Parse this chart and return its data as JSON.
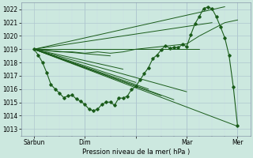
{
  "xlabel": "Pression niveau de la mer( hPa )",
  "bg_color": "#cce8df",
  "grid_major_color": "#b0c8d0",
  "grid_minor_color": "#c8dde4",
  "line_color": "#1a5c1a",
  "ylim": [
    1012.5,
    1022.5
  ],
  "yticks": [
    1013,
    1014,
    1015,
    1016,
    1017,
    1018,
    1019,
    1020,
    1021,
    1022
  ],
  "xlim": [
    0,
    108
  ],
  "xtick_pos": [
    6,
    30,
    54,
    78,
    102
  ],
  "xtick_labels": [
    "Sàrbun",
    "Dim",
    "",
    "Mar",
    "Mer"
  ],
  "vline_pos": [
    30,
    54,
    78,
    102
  ],
  "origin_x": 6,
  "origin_y": 1019.0,
  "fan_endpoints": [
    [
      30,
      1019.0
    ],
    [
      42,
      1018.5
    ],
    [
      48,
      1017.5
    ],
    [
      54,
      1016.5
    ],
    [
      60,
      1016.0
    ],
    [
      66,
      1015.5
    ],
    [
      72,
      1015.2
    ],
    [
      78,
      1015.8
    ],
    [
      84,
      1019.0
    ],
    [
      90,
      1021.0
    ],
    [
      96,
      1022.2
    ],
    [
      102,
      1013.2
    ]
  ],
  "main_curve_x": [
    6,
    8,
    10,
    12,
    14,
    16,
    18,
    20,
    22,
    24,
    26,
    28,
    30,
    32,
    34,
    36,
    38,
    40,
    42,
    44,
    46,
    48,
    50,
    52,
    54,
    56,
    58,
    60,
    62,
    64,
    66,
    68,
    70,
    72,
    74,
    76,
    78,
    80,
    82,
    84,
    86,
    88,
    90,
    92,
    94,
    96,
    98,
    100,
    102
  ],
  "main_curve_y": [
    1019.0,
    1018.6,
    1018.0,
    1017.2,
    1016.4,
    1016.0,
    1015.7,
    1015.5,
    1015.4,
    1015.5,
    1015.3,
    1015.1,
    1014.8,
    1014.5,
    1014.4,
    1014.6,
    1014.8,
    1015.0,
    1015.0,
    1014.9,
    1015.2,
    1015.3,
    1015.5,
    1015.8,
    1016.2,
    1016.8,
    1017.2,
    1017.8,
    1018.2,
    1018.6,
    1019.0,
    1019.2,
    1019.2,
    1019.1,
    1019.3,
    1019.4,
    1019.3,
    1020.0,
    1020.8,
    1021.5,
    1022.0,
    1022.2,
    1022.0,
    1021.5,
    1020.8,
    1020.0,
    1018.5,
    1016.0,
    1013.2
  ],
  "second_curve_x": [
    6,
    12,
    18,
    24,
    30,
    36,
    42,
    48,
    54,
    60,
    66,
    72,
    78,
    84,
    90,
    96,
    102
  ],
  "second_curve_y": [
    1019.0,
    1018.9,
    1018.8,
    1018.8,
    1018.7,
    1018.8,
    1018.7,
    1018.8,
    1019.0,
    1019.1,
    1019.2,
    1019.3,
    1019.4,
    1020.0,
    1020.5,
    1021.0,
    1021.2
  ]
}
